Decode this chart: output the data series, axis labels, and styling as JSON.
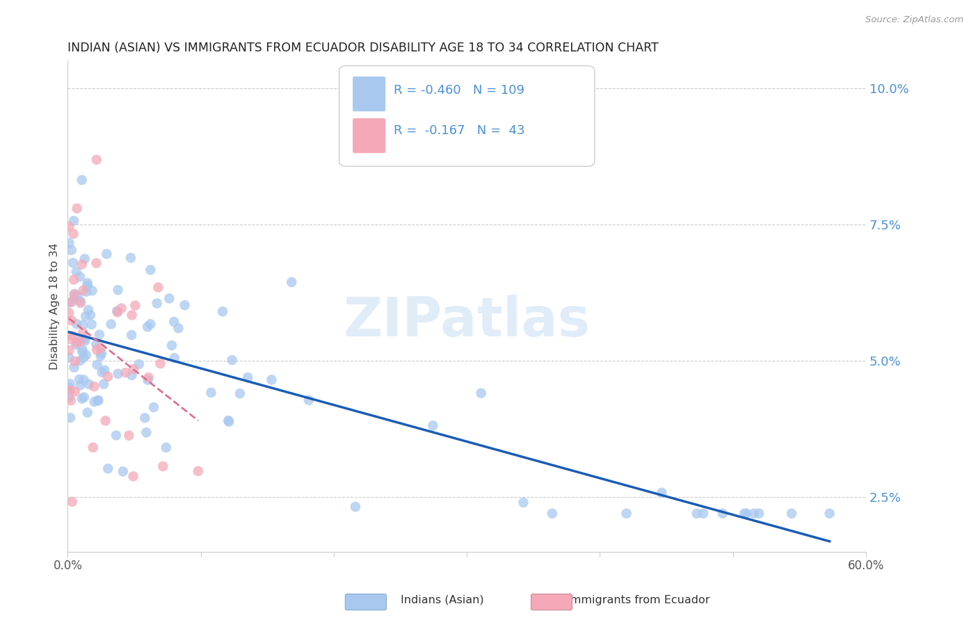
{
  "title": "INDIAN (ASIAN) VS IMMIGRANTS FROM ECUADOR DISABILITY AGE 18 TO 34 CORRELATION CHART",
  "source": "Source: ZipAtlas.com",
  "ylabel": "Disability Age 18 to 34",
  "xlim": [
    0.0,
    0.6
  ],
  "ylim": [
    0.015,
    0.105
  ],
  "yticks": [
    0.025,
    0.05,
    0.075,
    0.1
  ],
  "yticklabels": [
    "2.5%",
    "5.0%",
    "7.5%",
    "10.0%"
  ],
  "xticks": [
    0.0,
    0.1,
    0.2,
    0.3,
    0.4,
    0.5,
    0.6
  ],
  "blue_color": "#A8C8F0",
  "pink_color": "#F4A8B8",
  "line_blue": "#1A5CB5",
  "line_pink": "#E07090",
  "legend_R1": "-0.460",
  "legend_N1": "109",
  "legend_R2": "-0.167",
  "legend_N2": "43",
  "legend_label1": "Indians (Asian)",
  "legend_label2": "Immigrants from Ecuador",
  "watermark": "ZIPatlas",
  "title_color": "#222222",
  "source_color": "#999999",
  "tick_color_y": "#4A90D9",
  "tick_color_x": "#555555",
  "grid_color": "#cccccc"
}
